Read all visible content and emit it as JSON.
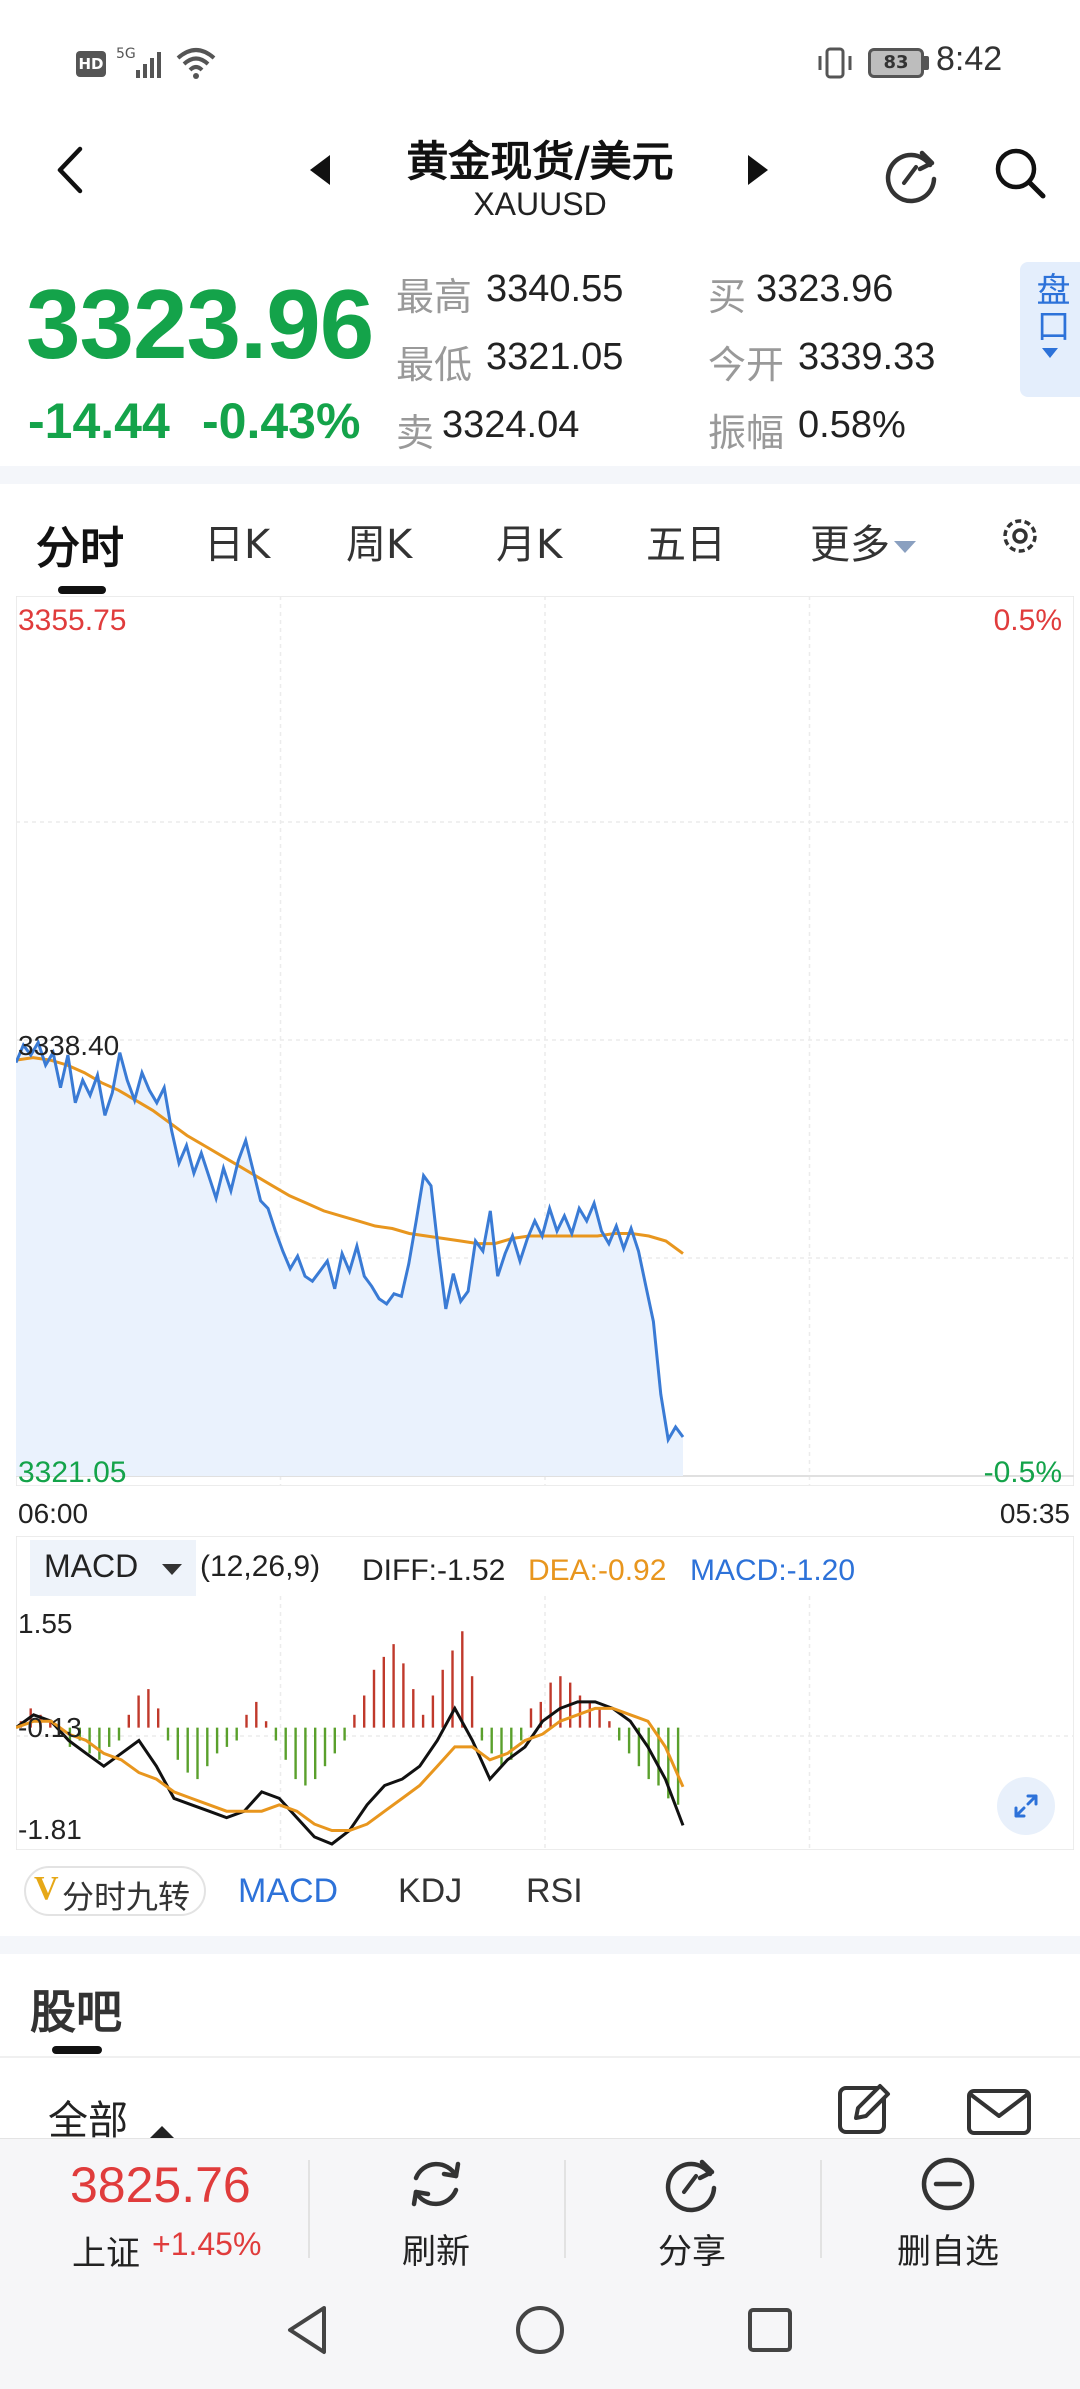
{
  "status_bar": {
    "hd": "HD",
    "signal_label": "5G",
    "battery": "83",
    "time": "8:42"
  },
  "header": {
    "title": "黄金现货/美元",
    "symbol": "XAUUSD",
    "icons": [
      "back-arrow",
      "prev-triangle",
      "next-triangle",
      "refresh-share-icon",
      "search-icon"
    ]
  },
  "quote": {
    "price": "3323.96",
    "change": "-14.44",
    "change_pct": "-0.43%",
    "stats": [
      {
        "label": "最高",
        "value": "3340.55"
      },
      {
        "label": "买",
        "value": "3323.96"
      },
      {
        "label": "最低",
        "value": "3321.05"
      },
      {
        "label": "今开",
        "value": "3339.33"
      },
      {
        "label": "卖",
        "value": "3324.04"
      },
      {
        "label": "振幅",
        "value": "0.58%"
      }
    ],
    "pankou_label": "盘口"
  },
  "tabs": [
    "分时",
    "日K",
    "周K",
    "月K",
    "五日",
    "更多"
  ],
  "active_tab": "分时",
  "colors": {
    "up": "#e03c3c",
    "down": "#14a34a",
    "accent": "#2d72d9",
    "avg": "#e8961e",
    "price_line": "#3a7bd5"
  },
  "chart": {
    "y_top": "3355.75",
    "y_mid": "3338.40",
    "y_bottom": "3321.05",
    "pct_top": "0.5%",
    "pct_bottom": "-0.5%",
    "x_start": "06:00",
    "x_end": "05:35"
  },
  "chart_data": {
    "type": "line",
    "title": "",
    "xlabel": "",
    "ylabel": "",
    "ylim": [
      3321.05,
      3355.75
    ],
    "x_range": [
      "06:00",
      "05:35"
    ],
    "grid": true,
    "series": [
      {
        "name": "",
        "role": "price",
        "values": [
          3337.5,
          3338.2,
          3337.8,
          3338.3,
          3337.4,
          3337.9,
          3336.5,
          3337.8,
          3335.9,
          3336.8,
          3336.2,
          3337.0,
          3335.4,
          3336.3,
          3337.9,
          3336.8,
          3336.0,
          3337.1,
          3336.4,
          3335.9,
          3336.5,
          3334.8,
          3333.5,
          3334.2,
          3333.1,
          3333.9,
          3333.0,
          3332.1,
          3333.3,
          3332.4,
          3333.6,
          3334.4,
          3333.2,
          3332.0,
          3331.7,
          3330.8,
          3330.0,
          3329.3,
          3329.8,
          3329.0,
          3328.8,
          3329.2,
          3329.6,
          3328.5,
          3329.9,
          3329.2,
          3330.2,
          3329.0,
          3328.6,
          3328.1,
          3327.9,
          3328.3,
          3328.2,
          3329.5,
          3331.2,
          3333.0,
          3332.6,
          3330.0,
          3327.7,
          3329.1,
          3328.0,
          3328.4,
          3330.4,
          3330.0,
          3331.6,
          3329.0,
          3329.9,
          3330.6,
          3329.6,
          3330.5,
          3331.2,
          3330.6,
          3331.7,
          3330.8,
          3331.4,
          3330.7,
          3331.7,
          3331.2,
          3331.9,
          3330.8,
          3330.3,
          3331.0,
          3330.1,
          3330.9,
          3330.0,
          3328.6,
          3327.2,
          3324.3,
          3322.5,
          3323.0,
          3322.6
        ]
      },
      {
        "name": "",
        "role": "average",
        "values": [
          3337.6,
          3337.7,
          3337.6,
          3337.4,
          3337.1,
          3336.7,
          3336.4,
          3336.0,
          3335.6,
          3335.1,
          3334.6,
          3334.2,
          3333.8,
          3333.4,
          3333.0,
          3332.6,
          3332.2,
          3331.9,
          3331.6,
          3331.4,
          3331.2,
          3331.0,
          3330.9,
          3330.7,
          3330.6,
          3330.5,
          3330.4,
          3330.3,
          3330.3,
          3330.5,
          3330.6,
          3330.6,
          3330.6,
          3330.6,
          3330.6,
          3330.7,
          3330.7,
          3330.6,
          3330.4,
          3329.9
        ]
      }
    ]
  },
  "macd_panel": {
    "selector": "MACD",
    "params": "(12,26,9)",
    "diff": "DIFF:-1.52",
    "dea": "DEA:-0.92",
    "macd": "MACD:-1.20",
    "y_top": "1.55",
    "y_mid": "-0.13",
    "y_bottom": "-1.81",
    "chart_data": {
      "type": "bar",
      "ylim": [
        -1.81,
        1.55
      ],
      "histogram": [
        0.1,
        0.3,
        0.2,
        0.1,
        -0.1,
        -0.3,
        -0.2,
        -0.4,
        -0.5,
        -0.3,
        -0.2,
        0.2,
        0.5,
        0.6,
        0.3,
        -0.2,
        -0.5,
        -0.7,
        -0.8,
        -0.6,
        -0.4,
        -0.3,
        -0.2,
        0.2,
        0.4,
        0.1,
        -0.2,
        -0.5,
        -0.8,
        -0.9,
        -0.8,
        -0.6,
        -0.4,
        -0.2,
        0.2,
        0.5,
        0.9,
        1.1,
        1.3,
        1.0,
        0.6,
        0.2,
        0.5,
        0.9,
        1.2,
        1.5,
        0.8,
        -0.2,
        -0.4,
        -0.6,
        -0.5,
        -0.2,
        0.3,
        0.4,
        0.7,
        0.8,
        0.7,
        0.5,
        0.4,
        0.3,
        0.1,
        -0.2,
        -0.4,
        -0.6,
        -0.8,
        -0.9,
        -1.1,
        -1.2
      ],
      "series": [
        {
          "name": "DIFF",
          "values": [
            0.0,
            0.2,
            0.1,
            -0.2,
            -0.4,
            -0.6,
            -0.4,
            -0.2,
            -0.6,
            -1.1,
            -1.2,
            -1.3,
            -1.4,
            -1.3,
            -1.0,
            -1.1,
            -1.4,
            -1.7,
            -1.81,
            -1.6,
            -1.2,
            -0.9,
            -0.8,
            -0.6,
            -0.2,
            0.3,
            -0.2,
            -0.8,
            -0.5,
            -0.3,
            0.1,
            0.3,
            0.4,
            0.4,
            0.3,
            0.1,
            -0.3,
            -0.8,
            -1.52
          ]
        },
        {
          "name": "DEA",
          "values": [
            0.0,
            0.1,
            0.1,
            -0.1,
            -0.2,
            -0.4,
            -0.5,
            -0.7,
            -0.8,
            -1.0,
            -1.1,
            -1.2,
            -1.3,
            -1.3,
            -1.3,
            -1.2,
            -1.3,
            -1.5,
            -1.6,
            -1.6,
            -1.5,
            -1.3,
            -1.1,
            -0.9,
            -0.6,
            -0.3,
            -0.3,
            -0.5,
            -0.4,
            -0.2,
            -0.1,
            0.1,
            0.2,
            0.3,
            0.3,
            0.2,
            0.1,
            -0.3,
            -0.92
          ]
        }
      ]
    }
  },
  "indicator_tabs": [
    "分时九转",
    "MACD",
    "KDJ",
    "RSI"
  ],
  "active_indicator": "MACD",
  "guba": {
    "title": "股吧",
    "filter": "全部"
  },
  "bottom_bar": {
    "index_value": "3825.76",
    "index_name": "上证",
    "index_change": "+1.45%",
    "actions": [
      "刷新",
      "分享",
      "删自选"
    ]
  }
}
